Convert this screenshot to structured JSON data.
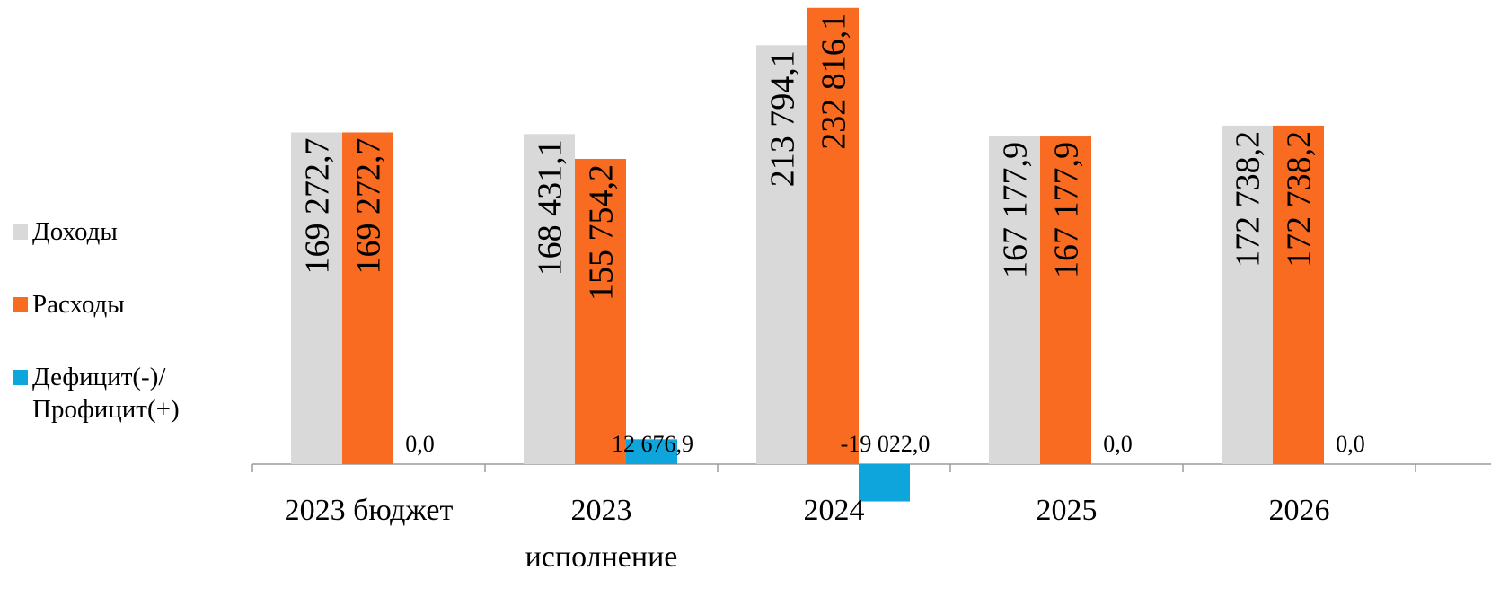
{
  "chart_data": {
    "type": "bar",
    "categories": [
      "2023 бюджет",
      "2023\nисполнение",
      "2024",
      "2025",
      "2026"
    ],
    "series": [
      {
        "name": "Доходы",
        "color": "#d9d9d9",
        "values": [
          169272.7,
          168431.1,
          213794.1,
          167177.9,
          172738.2
        ],
        "labels": [
          "169 272,7",
          "168 431,1",
          "213 794,1",
          "167 177,9",
          "172 738,2"
        ]
      },
      {
        "name": "Расходы",
        "color": "#f96b21",
        "values": [
          169272.7,
          155754.2,
          232816.1,
          167177.9,
          172738.2
        ],
        "labels": [
          "169 272,7",
          "155 754,2",
          "232 816,1",
          "167 177,9",
          "172 738,2"
        ]
      },
      {
        "name": "Дефицит(-)/\nПрофицит(+)",
        "color": "#0ea5dc",
        "values": [
          0.0,
          12676.9,
          -19022.0,
          0.0,
          0.0
        ],
        "labels": [
          "0,0",
          "12 676,9",
          "-19 022,0",
          "0,0",
          "0,0"
        ]
      }
    ],
    "legend_position": "left",
    "grid": false
  }
}
